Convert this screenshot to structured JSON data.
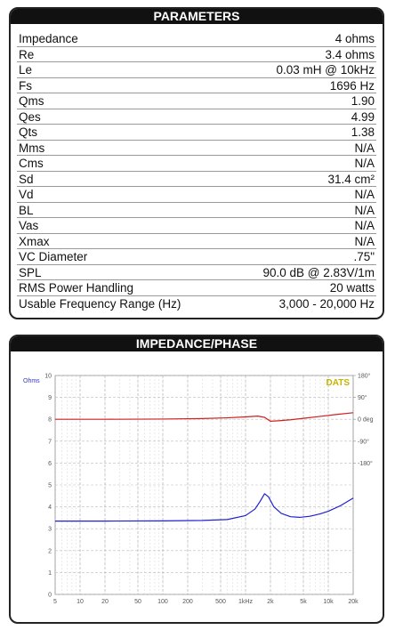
{
  "parameters": {
    "title": "PARAMETERS",
    "rows": [
      [
        "Impedance",
        "4 ohms"
      ],
      [
        "Re",
        "3.4 ohms"
      ],
      [
        "Le",
        "0.03 mH @ 10kHz"
      ],
      [
        "Fs",
        "1696 Hz"
      ],
      [
        "Qms",
        "1.90"
      ],
      [
        "Qes",
        "4.99"
      ],
      [
        "Qts",
        "1.38"
      ],
      [
        "Mms",
        "N/A"
      ],
      [
        "Cms",
        "N/A"
      ],
      [
        "Sd",
        "31.4 cm²"
      ],
      [
        "Vd",
        "N/A"
      ],
      [
        "BL",
        "N/A"
      ],
      [
        "Vas",
        "N/A"
      ],
      [
        "Xmax",
        "N/A"
      ],
      [
        "VC Diameter",
        ".75\""
      ],
      [
        "SPL",
        "90.0 dB @ 2.83V/1m"
      ],
      [
        "RMS Power Handling",
        "20 watts"
      ],
      [
        "Usable Frequency Range (Hz)",
        "3,000 - 20,000 Hz"
      ]
    ]
  },
  "chart_data": {
    "type": "line",
    "title": "IMPEDANCE/PHASE",
    "y_label": "Ohms",
    "annotation": "DATS",
    "log_x": true,
    "grid": true,
    "xlim": [
      5,
      20000
    ],
    "xticks": [
      5,
      10,
      20,
      50,
      100,
      200,
      500,
      {
        "value": 1000,
        "label": "1kHz"
      },
      {
        "value": 2000,
        "label": "2k"
      },
      {
        "value": 5000,
        "label": "5k"
      },
      {
        "value": 10000,
        "label": "10k"
      },
      {
        "value": 20000,
        "label": "20k"
      }
    ],
    "ylim": [
      0,
      10
    ],
    "yticks": [
      0,
      1,
      2,
      3,
      4,
      5,
      6,
      7,
      8,
      9,
      10
    ],
    "y2lim": [
      -720,
      180
    ],
    "y2ticks": [
      {
        "value": 180,
        "label": "180°"
      },
      {
        "value": 90,
        "label": "90°"
      },
      {
        "value": 0,
        "label": "0 deg"
      },
      {
        "value": -90,
        "label": "-90°"
      },
      {
        "value": -180,
        "label": "-180°"
      }
    ],
    "series": [
      {
        "color": "#2020d0",
        "x": [
          5,
          20,
          100,
          300,
          600,
          1000,
          1300,
          1500,
          1700,
          1900,
          2200,
          2700,
          3500,
          4500,
          6000,
          8000,
          10000,
          14000,
          20000
        ],
        "values": [
          3.35,
          3.35,
          3.36,
          3.38,
          3.42,
          3.6,
          3.9,
          4.25,
          4.6,
          4.45,
          4.0,
          3.7,
          3.55,
          3.52,
          3.57,
          3.68,
          3.8,
          4.05,
          4.4
        ]
      },
      {
        "color": "#d02020",
        "axis": "y2",
        "x": [
          5,
          20,
          100,
          300,
          600,
          1000,
          1400,
          1700,
          2000,
          2500,
          3500,
          5000,
          8000,
          12000,
          20000
        ],
        "values": [
          0,
          0,
          1,
          3,
          6,
          10,
          13,
          8,
          -8,
          -6,
          -2,
          4,
          12,
          19,
          27
        ]
      }
    ]
  }
}
